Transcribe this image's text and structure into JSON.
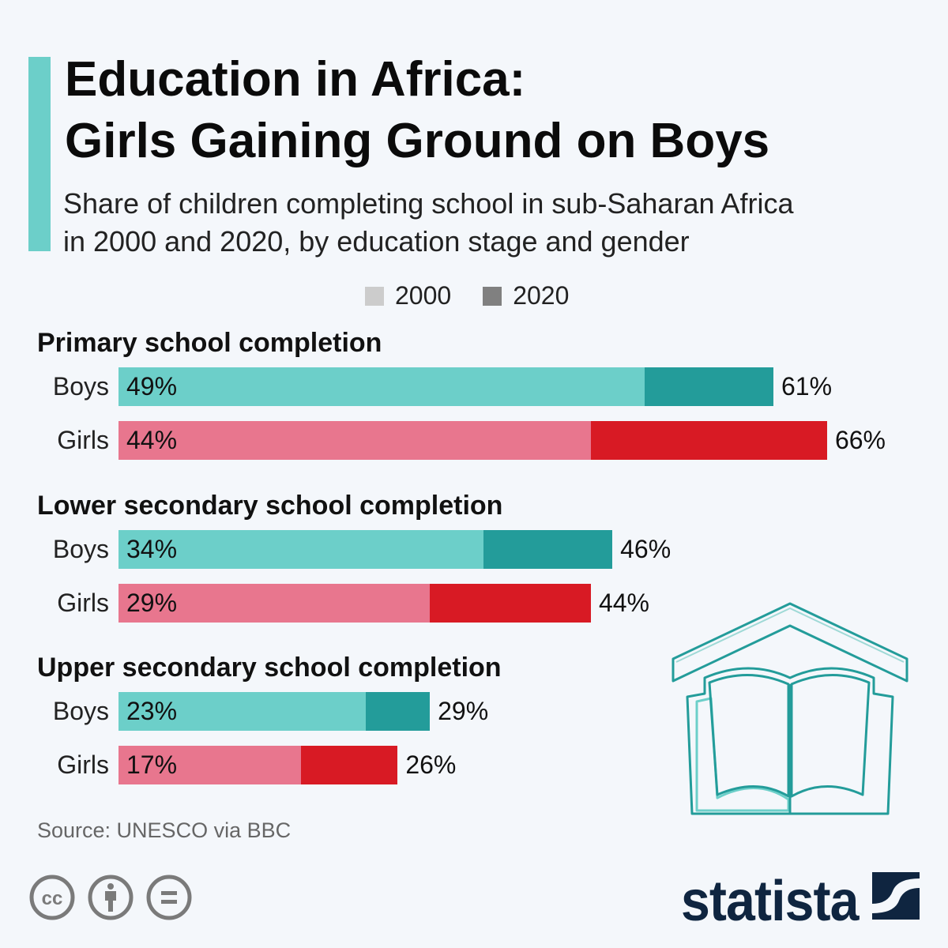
{
  "header": {
    "title_line1": "Education in Africa:",
    "title_line2": "Girls Gaining Ground on Boys",
    "subtitle_line1": "Share of children completing school in sub-Saharan Africa",
    "subtitle_line2": "in 2000 and 2020, by education stage and gender"
  },
  "colors": {
    "accent": "#6ccfc9",
    "boys_2000": "#6ccfc9",
    "boys_2020": "#239c9a",
    "girls_2000": "#e8768e",
    "girls_2020": "#d81a24",
    "legend_2000": "#cccccc",
    "legend_2020": "#808080"
  },
  "chart_data": {
    "type": "bar",
    "orientation": "horizontal",
    "legend": {
      "position": "top",
      "entries": [
        "2000",
        "2020"
      ]
    },
    "unit": "%",
    "groups": [
      {
        "title": "Primary school completion",
        "rows": [
          {
            "label": "Boys",
            "v2000": 49,
            "v2020": 61,
            "text2000": "49%",
            "text2020": "61%"
          },
          {
            "label": "Girls",
            "v2000": 44,
            "v2020": 66,
            "text2000": "44%",
            "text2020": "66%"
          }
        ]
      },
      {
        "title": "Lower secondary school completion",
        "rows": [
          {
            "label": "Boys",
            "v2000": 34,
            "v2020": 46,
            "text2000": "34%",
            "text2020": "46%"
          },
          {
            "label": "Girls",
            "v2000": 29,
            "v2020": 44,
            "text2000": "29%",
            "text2020": "44%"
          }
        ]
      },
      {
        "title": "Upper secondary school completion",
        "rows": [
          {
            "label": "Boys",
            "v2000": 23,
            "v2020": 29,
            "text2000": "23%",
            "text2020": "29%"
          },
          {
            "label": "Girls",
            "v2000": 17,
            "v2020": 26,
            "text2000": "17%",
            "text2020": "26%"
          }
        ]
      }
    ]
  },
  "footer": {
    "source": "Source: UNESCO via BBC",
    "brand": "statista",
    "license_icons": [
      "cc-icon",
      "attribution-icon",
      "no-derivatives-icon"
    ]
  }
}
